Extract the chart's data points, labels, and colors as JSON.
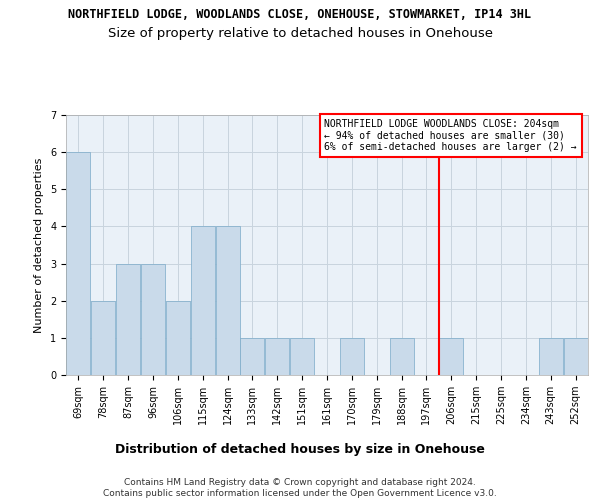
{
  "title": "NORTHFIELD LODGE, WOODLANDS CLOSE, ONEHOUSE, STOWMARKET, IP14 3HL",
  "subtitle": "Size of property relative to detached houses in Onehouse",
  "xlabel": "Distribution of detached houses by size in Onehouse",
  "ylabel": "Number of detached properties",
  "categories": [
    "69sqm",
    "78sqm",
    "87sqm",
    "96sqm",
    "106sqm",
    "115sqm",
    "124sqm",
    "133sqm",
    "142sqm",
    "151sqm",
    "161sqm",
    "170sqm",
    "179sqm",
    "188sqm",
    "197sqm",
    "206sqm",
    "215sqm",
    "225sqm",
    "234sqm",
    "243sqm",
    "252sqm"
  ],
  "values": [
    6,
    2,
    3,
    3,
    2,
    4,
    4,
    1,
    1,
    1,
    0,
    1,
    0,
    1,
    0,
    1,
    0,
    0,
    0,
    1,
    1
  ],
  "bar_color": "#c9daea",
  "bar_edge_color": "#7aaac8",
  "grid_color": "#c8d4de",
  "background_color": "#eaf1f8",
  "vline_x": 14.5,
  "vline_color": "red",
  "annotation_text": "NORTHFIELD LODGE WOODLANDS CLOSE: 204sqm\n← 94% of detached houses are smaller (30)\n6% of semi-detached houses are larger (2) →",
  "annotation_box_color": "red",
  "ylim": [
    0,
    7
  ],
  "yticks": [
    0,
    1,
    2,
    3,
    4,
    5,
    6,
    7
  ],
  "footer_text": "Contains HM Land Registry data © Crown copyright and database right 2024.\nContains public sector information licensed under the Open Government Licence v3.0.",
  "title_fontsize": 8.5,
  "subtitle_fontsize": 9.5,
  "xlabel_fontsize": 9,
  "ylabel_fontsize": 8,
  "tick_fontsize": 7,
  "annotation_fontsize": 7,
  "footer_fontsize": 6.5
}
